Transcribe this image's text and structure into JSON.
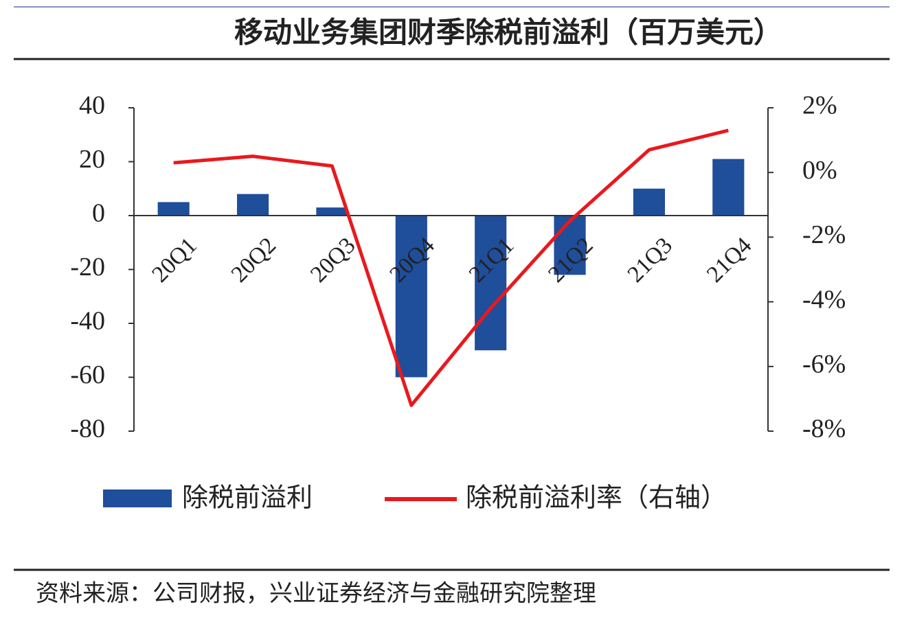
{
  "chart_data": {
    "type": "bar",
    "title": "移动业务集团财季除税前溢利（百万美元）",
    "source": "资料来源：公司财报，兴业证券经济与金融研究院整理",
    "categories": [
      "20Q1",
      "20Q2",
      "20Q3",
      "20Q4",
      "21Q1",
      "21Q2",
      "21Q3",
      "21Q4"
    ],
    "series": [
      {
        "name": "除税前溢利",
        "type": "bar",
        "color": "#1f4e9a",
        "values": [
          5,
          8,
          3,
          -60,
          -50,
          -22,
          10,
          21
        ]
      },
      {
        "name": "除税前溢利率（右轴）",
        "type": "line",
        "axis": "y2",
        "color": "#e8191e",
        "values": [
          0.3,
          0.5,
          0.2,
          -7.2,
          -4.2,
          -1.5,
          0.7,
          1.3
        ]
      }
    ],
    "ylim": [
      -80,
      40
    ],
    "yticks": [
      -80,
      -60,
      -40,
      -20,
      0,
      20,
      40
    ],
    "y2lim": [
      -8,
      2
    ],
    "y2ticks": [
      {
        "value": -8,
        "label": "-8%"
      },
      {
        "value": -6,
        "label": "-6%"
      },
      {
        "value": -4,
        "label": "-4%"
      },
      {
        "value": -2,
        "label": "-2%"
      },
      {
        "value": 0,
        "label": "0%"
      },
      {
        "value": 2,
        "label": "2%"
      }
    ],
    "legend": "bottom"
  }
}
